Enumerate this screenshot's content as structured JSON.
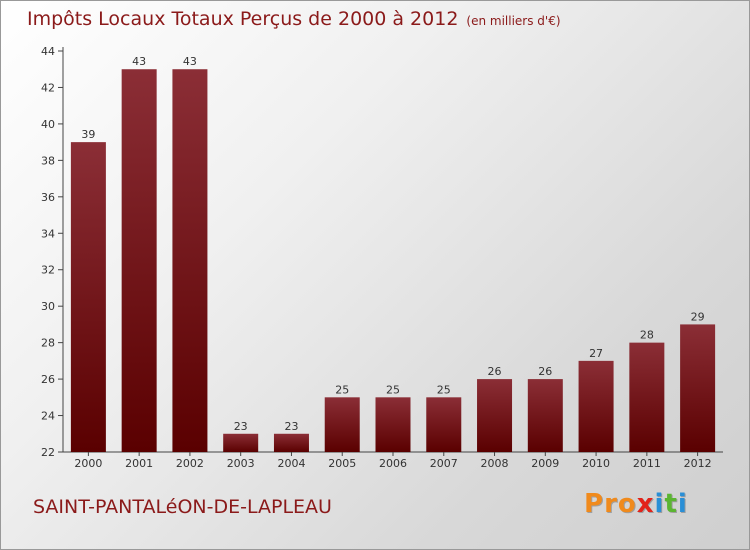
{
  "header": {
    "title": "Impôts Locaux Totaux Perçus de 2000 à 2012",
    "subtitle": "(en milliers d'€)"
  },
  "footer": {
    "commune": "SAINT-PANTALéON-DE-LAPLEAU",
    "logo_letters": [
      "P",
      "r",
      "o",
      "x",
      "i",
      "t",
      "i"
    ]
  },
  "colors": {
    "bar_top": "#8b2e36",
    "bar_bottom": "#5a0000",
    "title": "#8b1a1a",
    "logo": [
      "#f08a1c",
      "#f08a1c",
      "#f08a1c",
      "#e2231a",
      "#2a8fd6",
      "#5bb531",
      "#2a8fd6"
    ]
  },
  "chart_data": {
    "type": "bar",
    "title": "Impôts Locaux Totaux Perçus de 2000 à 2012",
    "xlabel": "",
    "ylabel": "",
    "categories": [
      "2000",
      "2001",
      "2002",
      "2003",
      "2004",
      "2005",
      "2006",
      "2007",
      "2008",
      "2009",
      "2010",
      "2011",
      "2012"
    ],
    "values": [
      39,
      43,
      43,
      23,
      23,
      25,
      25,
      25,
      26,
      26,
      27,
      28,
      29
    ],
    "ylim": [
      22,
      44
    ],
    "yticks": [
      22,
      24,
      26,
      28,
      30,
      32,
      34,
      36,
      38,
      40,
      42,
      44
    ],
    "grid": false
  }
}
